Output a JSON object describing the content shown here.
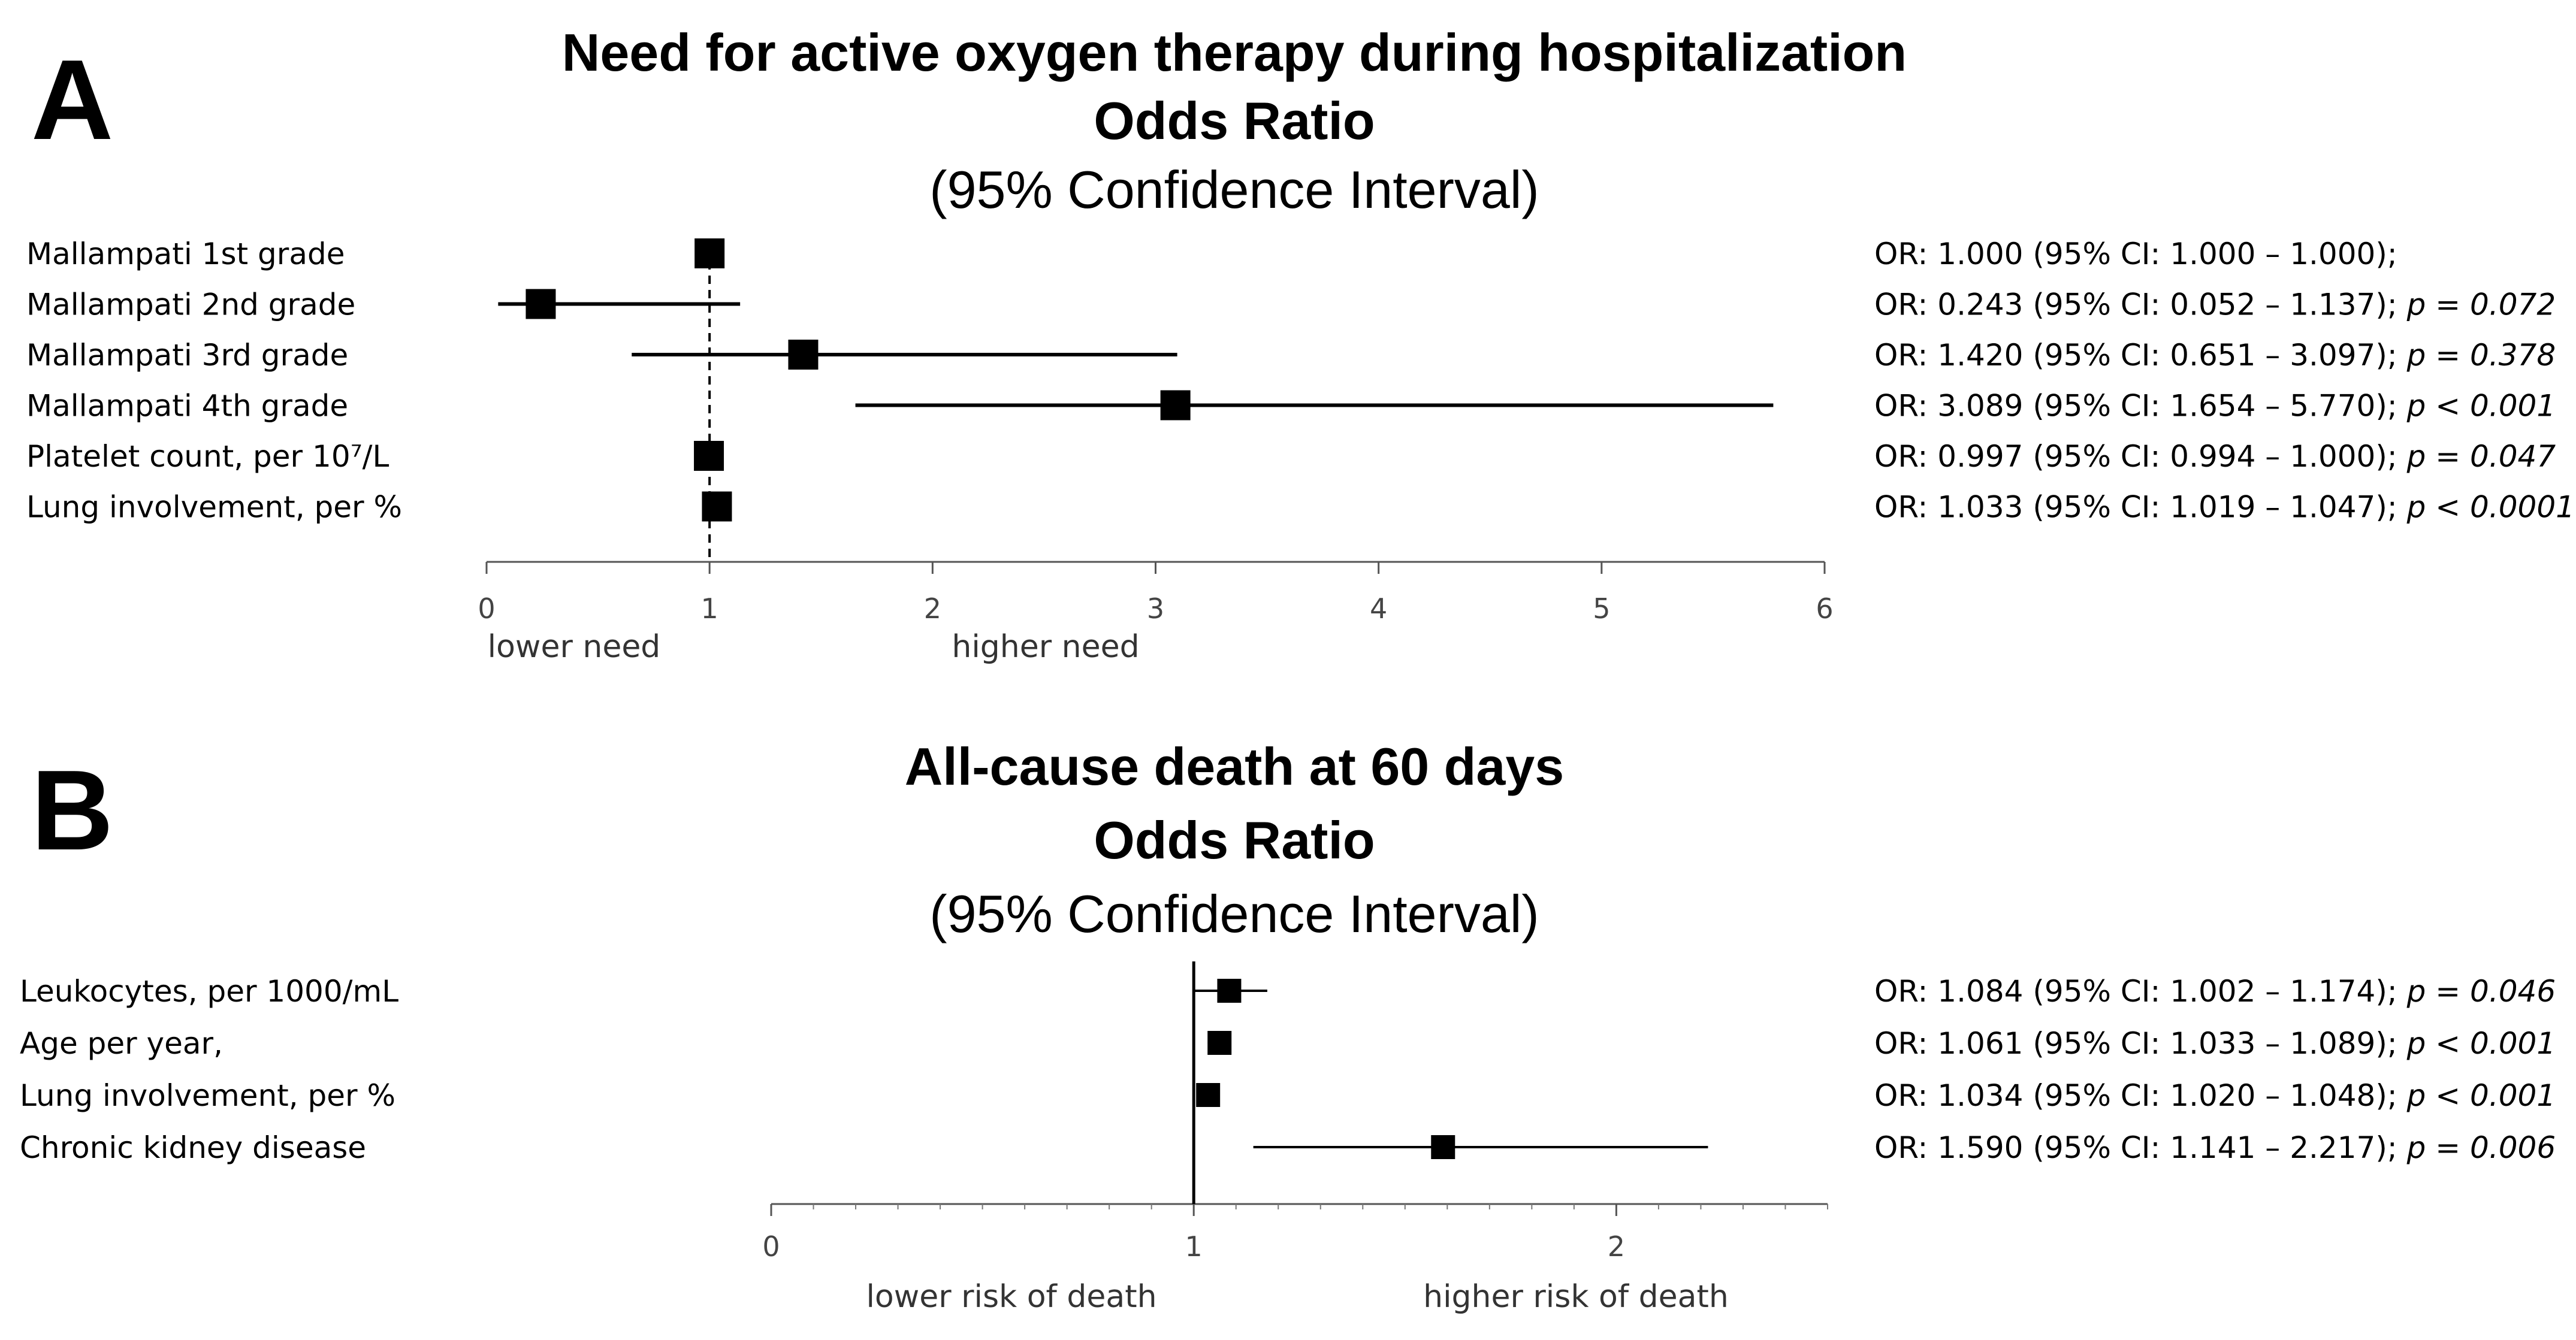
{
  "panels": [
    {
      "letter": "A",
      "title": [
        "Need for active oxygen therapy during hospitalization",
        "Odds Ratio",
        "(95% Confidence Interval)"
      ],
      "chart_data": {
        "type": "forest",
        "title": "Need for active oxygen therapy during hospitalization",
        "xlabel": "Odds Ratio (95% Confidence Interval)",
        "xlim": [
          0,
          6
        ],
        "ticks": [
          0,
          1,
          2,
          3,
          4,
          5,
          6
        ],
        "reference_line": 1,
        "reference_style": "dashed",
        "direction_labels": [
          "lower need",
          "higher need"
        ],
        "rows": [
          {
            "label": "Mallampati 1st grade",
            "or": 1.0,
            "lo": 1.0,
            "hi": 1.0,
            "text": "OR: 1.000 (95% CI: 1.000 – 1.000);",
            "p": ""
          },
          {
            "label": "Mallampati 2nd grade",
            "or": 0.243,
            "lo": 0.052,
            "hi": 1.137,
            "text": "OR: 0.243 (95% CI: 0.052 – 1.137);",
            "p": "p = 0.072"
          },
          {
            "label": "Mallampati 3rd grade",
            "or": 1.42,
            "lo": 0.651,
            "hi": 3.097,
            "text": "OR: 1.420 (95% CI: 0.651 – 3.097);",
            "p": "p = 0.378"
          },
          {
            "label": "Mallampati 4th grade",
            "or": 3.089,
            "lo": 1.654,
            "hi": 5.77,
            "text": "OR: 3.089 (95% CI: 1.654 – 5.770);",
            "p": "p < 0.001"
          },
          {
            "label": "Platelet count, per 10⁷/L",
            "or": 0.997,
            "lo": 0.994,
            "hi": 1.0,
            "text": "OR: 0.997 (95% CI: 0.994 – 1.000);",
            "p": "p = 0.047"
          },
          {
            "label": "Lung involvement, per %",
            "or": 1.033,
            "lo": 1.019,
            "hi": 1.047,
            "text": "OR: 1.033 (95% CI: 1.019 – 1.047);",
            "p": "p < 0.0001"
          }
        ]
      }
    },
    {
      "letter": "B",
      "title": [
        "All-cause death at 60 days",
        "Odds Ratio",
        "(95% Confidence Interval)"
      ],
      "chart_data": {
        "type": "forest",
        "title": "All-cause death at 60 days",
        "xlabel": "Odds Ratio (95% Confidence Interval)",
        "xlim": [
          0,
          2.5
        ],
        "ticks": [
          0,
          1,
          2
        ],
        "reference_line": 1,
        "reference_style": "solid",
        "direction_labels": [
          "lower risk of death",
          "higher risk of death"
        ],
        "rows": [
          {
            "label": "Leukocytes, per 1000/mL",
            "or": 1.084,
            "lo": 1.002,
            "hi": 1.174,
            "text": "OR: 1.084 (95% CI: 1.002 – 1.174);",
            "p": "p = 0.046"
          },
          {
            "label": "Age per year,",
            "or": 1.061,
            "lo": 1.033,
            "hi": 1.089,
            "text": "OR: 1.061 (95% CI: 1.033 – 1.089);",
            "p": "p < 0.001"
          },
          {
            "label": "Lung involvement, per %",
            "or": 1.034,
            "lo": 1.02,
            "hi": 1.048,
            "text": "OR: 1.034 (95% CI: 1.020 – 1.048);",
            "p": "p < 0.001"
          },
          {
            "label": "Chronic kidney disease",
            "or": 1.59,
            "lo": 1.141,
            "hi": 2.217,
            "text": "OR: 1.590 (95% CI: 1.141 – 2.217);",
            "p": "p = 0.006"
          }
        ]
      }
    }
  ]
}
